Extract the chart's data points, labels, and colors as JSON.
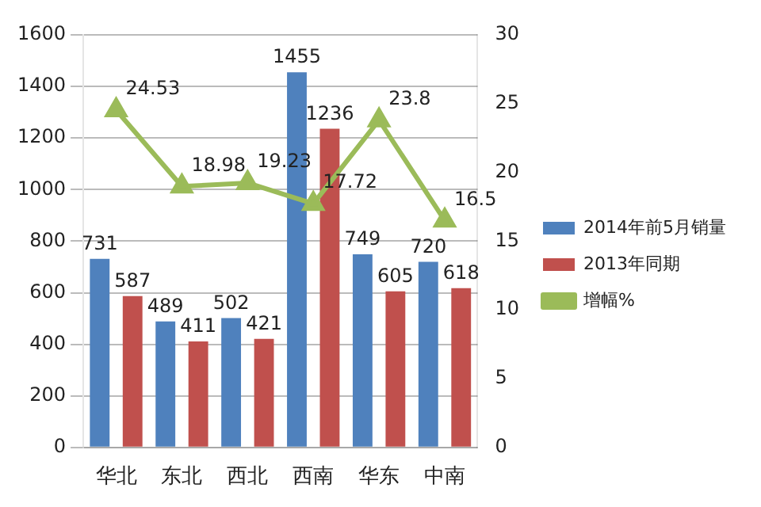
{
  "chart_data": {
    "type": "bar",
    "categories": [
      "华北",
      "东北",
      "西北",
      "西南",
      "华东",
      "中南"
    ],
    "series": [
      {
        "name": "2014年前5月销量",
        "color": "#4f81bd",
        "values": [
          731,
          489,
          502,
          1455,
          749,
          720
        ]
      },
      {
        "name": "2013年同期",
        "color": "#c0504d",
        "values": [
          587,
          411,
          421,
          1236,
          605,
          618
        ]
      },
      {
        "name": "增幅%",
        "type": "line",
        "axis": "y2",
        "color": "#9bbb59",
        "marker": "triangle",
        "values": [
          24.53,
          18.98,
          19.23,
          17.72,
          23.8,
          16.5
        ]
      }
    ],
    "ylim": [
      0,
      1600
    ],
    "yticks": [
      0,
      200,
      400,
      600,
      800,
      1000,
      1200,
      1400,
      1600
    ],
    "y2lim": [
      0,
      30
    ],
    "y2ticks": [
      0,
      5,
      10,
      15,
      20,
      25,
      30
    ],
    "grid": "y",
    "legend": "right",
    "data_labels": true
  }
}
